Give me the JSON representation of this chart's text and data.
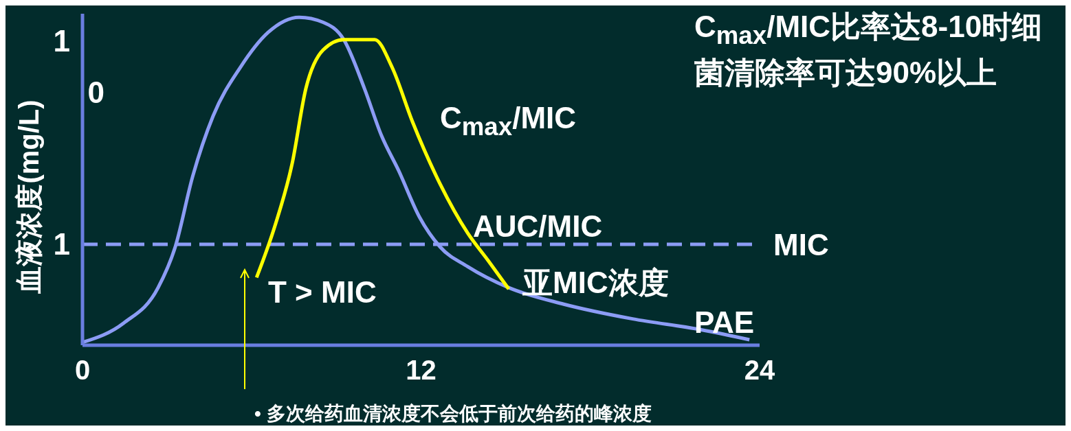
{
  "chart_data": {
    "type": "line",
    "ylabel": "血液浓度(mg/L)",
    "log": "y",
    "xlim": [
      0,
      24
    ],
    "xticks": [
      0,
      12,
      24
    ],
    "ylim": [
      0.27,
      20
    ],
    "yticks": [
      1,
      {
        "value": 10,
        "label": "10"
      }
    ],
    "grid": false,
    "legend": false,
    "marker": "none",
    "line_style": "solid",
    "series": [
      {
        "color": "#8c9cf5",
        "x": [
          0,
          1.46,
          2.68,
          3.29,
          3.9,
          4.63,
          5.6,
          6.58,
          7.68,
          8.53,
          9.26,
          9.99,
          10.6,
          11.21,
          11.94,
          12.67,
          13.65,
          15.11,
          17.06,
          19.5,
          21.93,
          23.64
        ],
        "values": [
          0.28,
          0.36,
          0.57,
          0.97,
          2.4,
          5.3,
          10,
          15.7,
          19.1,
          17.9,
          14.3,
          7.6,
          4.1,
          2.6,
          1.43,
          0.97,
          0.75,
          0.57,
          0.46,
          0.38,
          0.33,
          0.29
        ]
      },
      {
        "color": "#ffff00",
        "x": [
          6.17,
          6.82,
          7.43,
          7.92,
          8.53,
          9.26,
          10.36,
          10.97,
          11.7,
          12.67,
          13.65,
          14.38,
          15.11
        ],
        "values": [
          0.65,
          1.27,
          2.85,
          7.6,
          12.5,
          14.3,
          14.3,
          10,
          4.9,
          2.2,
          1.16,
          0.81,
          0.56
        ]
      }
    ],
    "ref_lines": [
      {
        "axis": "y",
        "value": 1,
        "label": "MIC",
        "color": "#8c9cf5",
        "line_style": "dashed"
      }
    ],
    "annotations": [
      "C$_{max}$/MIC比率达8-10时细菌清除率可达90%以上",
      "• 多次给药血清浓度不会低于前次给药的峰浓度",
      "C$_{max}$/MIC",
      "AUC/MIC",
      "亚MIC浓度",
      "PAE",
      "T > MIC"
    ]
  }
}
